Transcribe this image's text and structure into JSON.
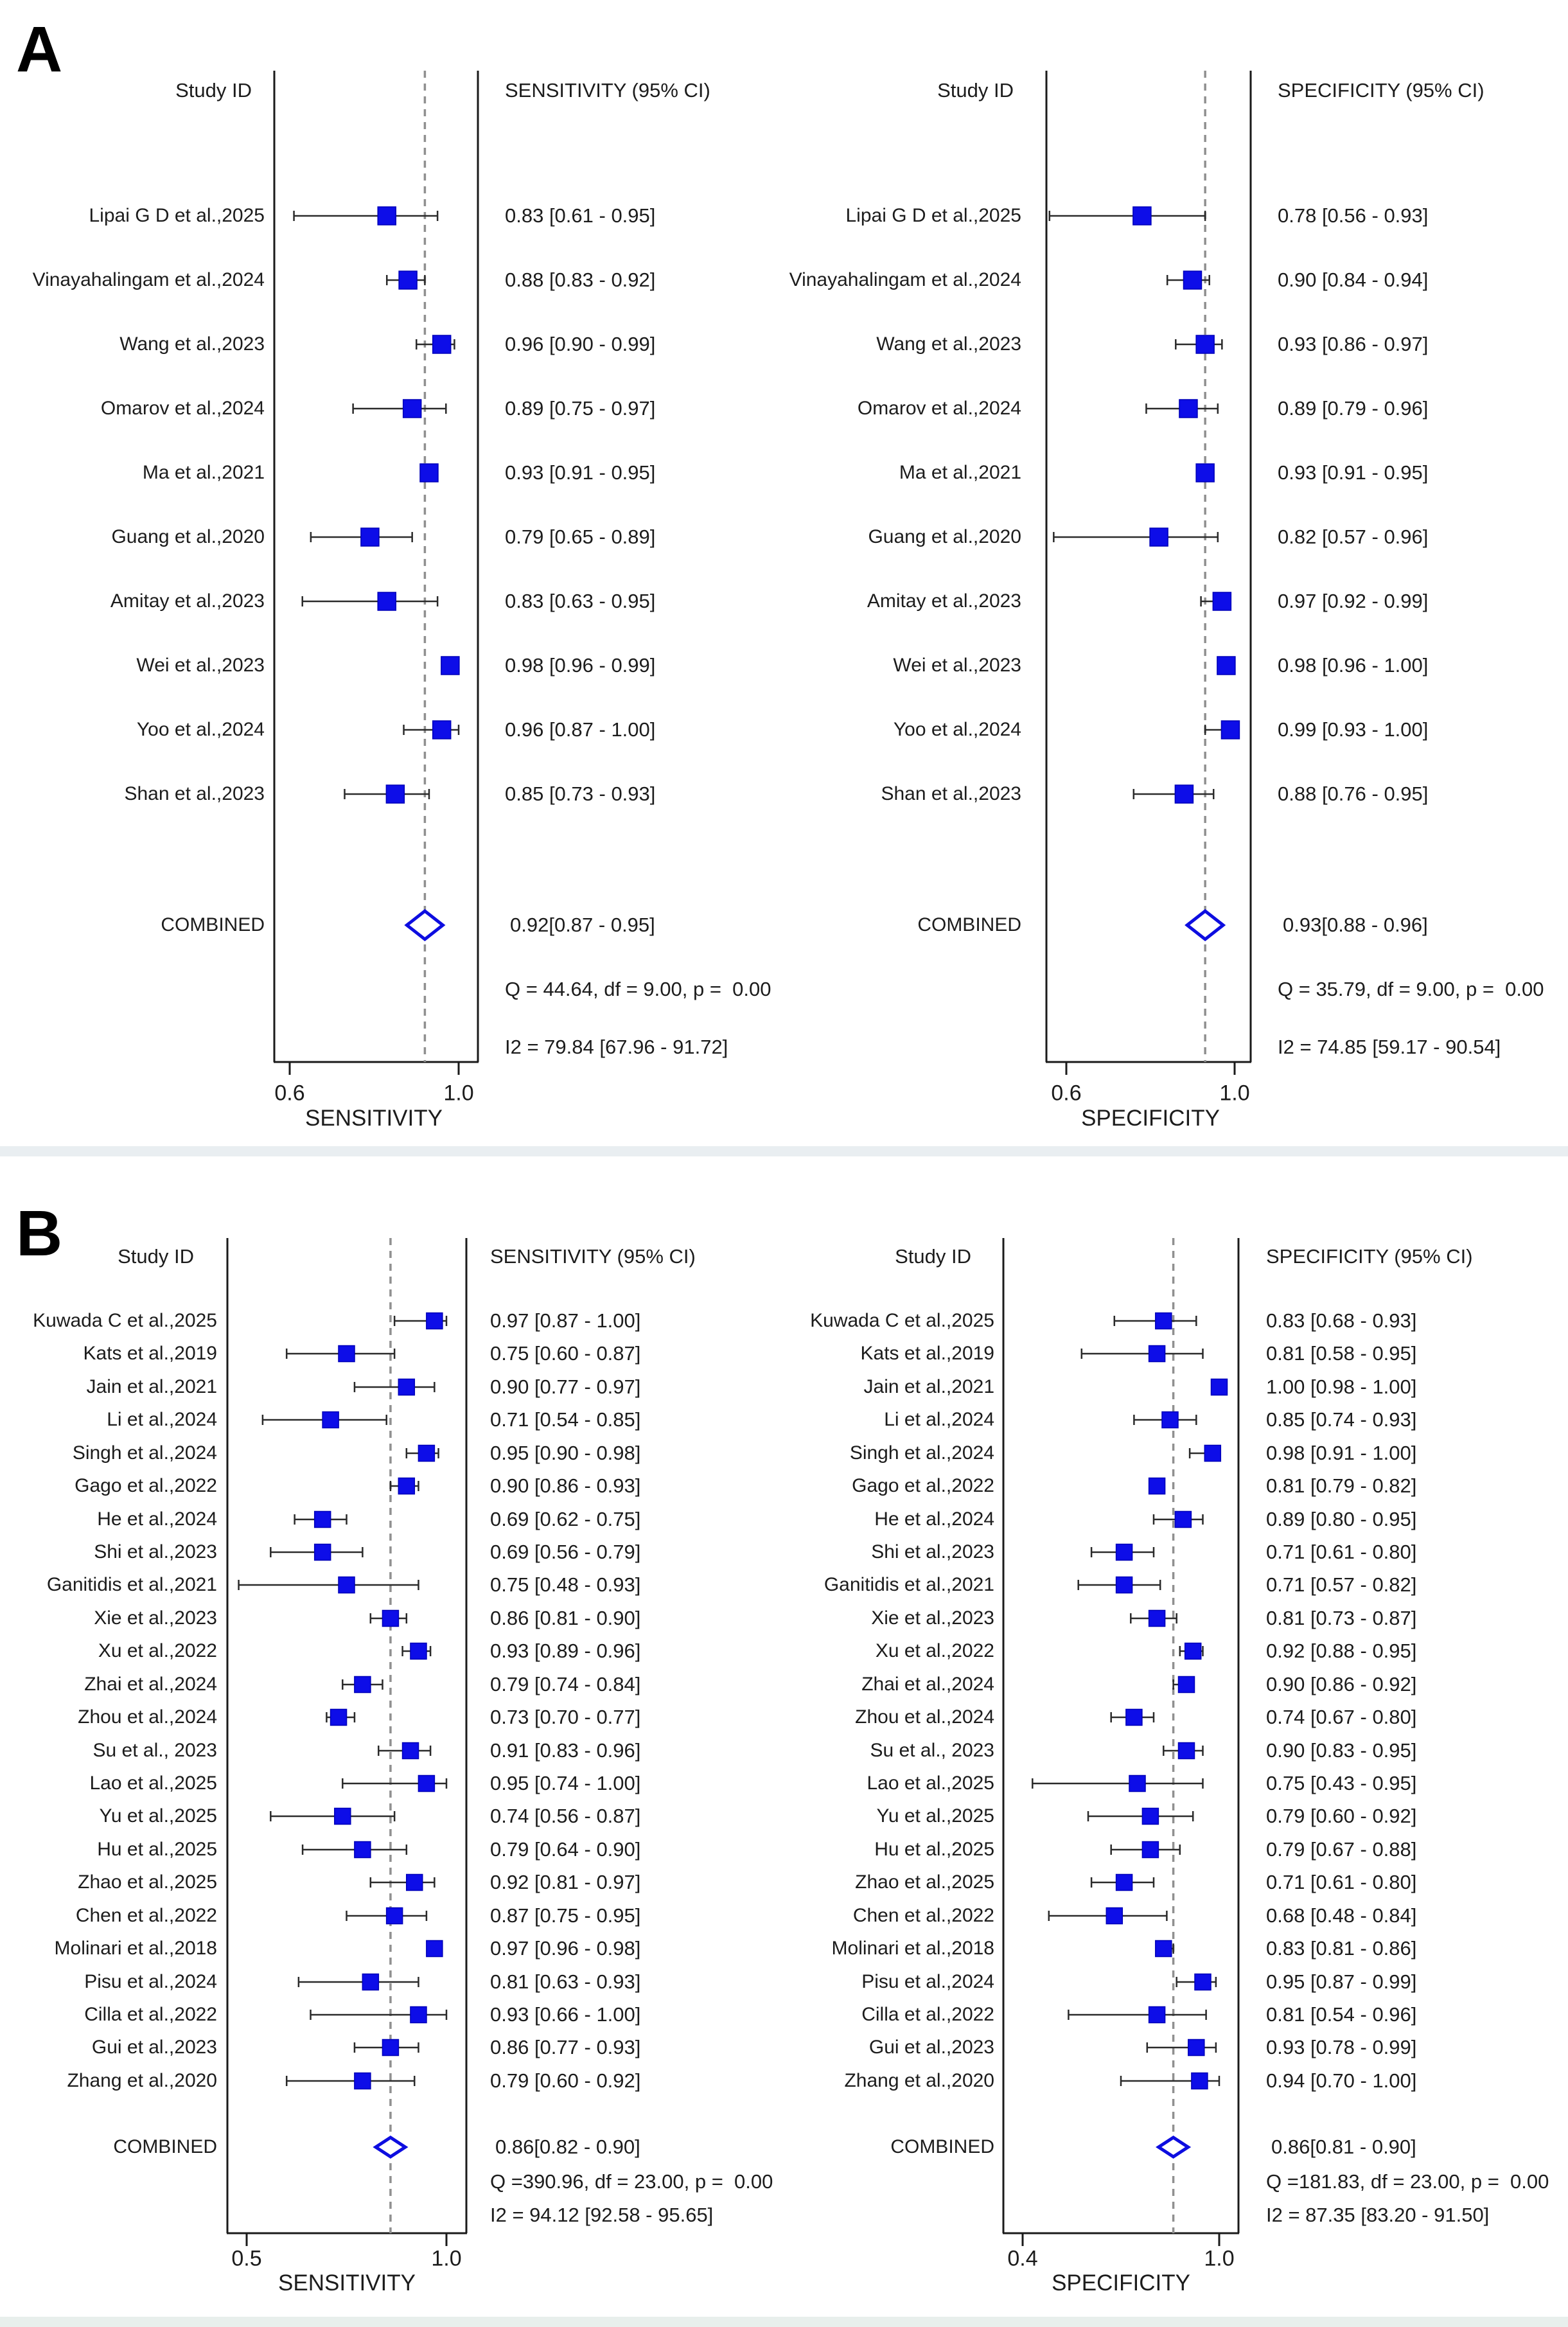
{
  "page": {
    "panel_a_label": "A",
    "panel_b_label": "B",
    "background_color": "#ffffff",
    "separator_band_color": "#e9eef1",
    "bottom_band_color": "#e8efec",
    "marker_color": "#0d0de8",
    "marker_edge_color": "#0000b8",
    "diamond_edge_color": "#0d0de0",
    "line_color": "#1a1a1a",
    "ci_line_color": "#2a2a2a",
    "dashed_line_color": "#909090",
    "text_color": "#1c1c1c"
  },
  "chart_data": [
    {
      "type": "forest",
      "panel": "A",
      "measure": "sensitivity",
      "study_header": "Study ID",
      "value_header": "SENSITIVITY (95% CI)",
      "axis_label": "SENSITIVITY",
      "axis_ticks": [
        "0.6",
        "1.0"
      ],
      "axis_tick_values": [
        0.6,
        1.0
      ],
      "studies": [
        {
          "label": "Lipai G D et al.,2025",
          "est": 0.83,
          "lo": 0.61,
          "hi": 0.95,
          "ci": "0.83 [0.61 - 0.95]"
        },
        {
          "label": "Vinayahalingam et al.,2024",
          "est": 0.88,
          "lo": 0.83,
          "hi": 0.92,
          "ci": "0.88 [0.83 - 0.92]"
        },
        {
          "label": "Wang et al.,2023",
          "est": 0.96,
          "lo": 0.9,
          "hi": 0.99,
          "ci": "0.96 [0.90 - 0.99]"
        },
        {
          "label": "Omarov et al.,2024",
          "est": 0.89,
          "lo": 0.75,
          "hi": 0.97,
          "ci": "0.89 [0.75 - 0.97]"
        },
        {
          "label": "Ma et al.,2021",
          "est": 0.93,
          "lo": 0.91,
          "hi": 0.95,
          "ci": "0.93 [0.91 - 0.95]"
        },
        {
          "label": "Guang et al.,2020",
          "est": 0.79,
          "lo": 0.65,
          "hi": 0.89,
          "ci": "0.79 [0.65 - 0.89]"
        },
        {
          "label": "Amitay et al.,2023",
          "est": 0.83,
          "lo": 0.63,
          "hi": 0.95,
          "ci": "0.83 [0.63 - 0.95]"
        },
        {
          "label": "Wei et al.,2023",
          "est": 0.98,
          "lo": 0.96,
          "hi": 0.99,
          "ci": "0.98 [0.96 - 0.99]"
        },
        {
          "label": "Yoo et al.,2024",
          "est": 0.96,
          "lo": 0.87,
          "hi": 1.0,
          "ci": "0.96 [0.87 - 1.00]"
        },
        {
          "label": "Shan et al.,2023",
          "est": 0.85,
          "lo": 0.73,
          "hi": 0.93,
          "ci": "0.85 [0.73 - 0.93]"
        }
      ],
      "combined": {
        "label": "COMBINED",
        "est": 0.92,
        "lo": 0.87,
        "hi": 0.95,
        "ci": "0.92[0.87 - 0.95]"
      },
      "heterogeneity_q": "Q = 44.64, df = 9.00, p =  0.00",
      "heterogeneity_i2": "I2 = 79.84 [67.96 - 91.72]"
    },
    {
      "type": "forest",
      "panel": "A",
      "measure": "specificity",
      "study_header": "Study ID",
      "value_header": "SPECIFICITY (95% CI)",
      "axis_label": "SPECIFICITY",
      "axis_ticks": [
        "0.6",
        "1.0"
      ],
      "axis_tick_values": [
        0.6,
        1.0
      ],
      "studies": [
        {
          "label": "Lipai G D et al.,2025",
          "est": 0.78,
          "lo": 0.56,
          "hi": 0.93,
          "ci": "0.78 [0.56 - 0.93]"
        },
        {
          "label": "Vinayahalingam et al.,2024",
          "est": 0.9,
          "lo": 0.84,
          "hi": 0.94,
          "ci": "0.90 [0.84 - 0.94]"
        },
        {
          "label": "Wang et al.,2023",
          "est": 0.93,
          "lo": 0.86,
          "hi": 0.97,
          "ci": "0.93 [0.86 - 0.97]"
        },
        {
          "label": "Omarov et al.,2024",
          "est": 0.89,
          "lo": 0.79,
          "hi": 0.96,
          "ci": "0.89 [0.79 - 0.96]"
        },
        {
          "label": "Ma et al.,2021",
          "est": 0.93,
          "lo": 0.91,
          "hi": 0.95,
          "ci": "0.93 [0.91 - 0.95]"
        },
        {
          "label": "Guang et al.,2020",
          "est": 0.82,
          "lo": 0.57,
          "hi": 0.96,
          "ci": "0.82 [0.57 - 0.96]"
        },
        {
          "label": "Amitay et al.,2023",
          "est": 0.97,
          "lo": 0.92,
          "hi": 0.99,
          "ci": "0.97 [0.92 - 0.99]"
        },
        {
          "label": "Wei et al.,2023",
          "est": 0.98,
          "lo": 0.96,
          "hi": 1.0,
          "ci": "0.98 [0.96 - 1.00]"
        },
        {
          "label": "Yoo et al.,2024",
          "est": 0.99,
          "lo": 0.93,
          "hi": 1.0,
          "ci": "0.99 [0.93 - 1.00]"
        },
        {
          "label": "Shan et al.,2023",
          "est": 0.88,
          "lo": 0.76,
          "hi": 0.95,
          "ci": "0.88 [0.76 - 0.95]"
        }
      ],
      "combined": {
        "label": "COMBINED",
        "est": 0.93,
        "lo": 0.88,
        "hi": 0.96,
        "ci": "0.93[0.88 - 0.96]"
      },
      "heterogeneity_q": "Q = 35.79, df = 9.00, p =  0.00",
      "heterogeneity_i2": "I2 = 74.85 [59.17 - 90.54]"
    },
    {
      "type": "forest",
      "panel": "B",
      "measure": "sensitivity",
      "study_header": "Study ID",
      "value_header": "SENSITIVITY (95% CI)",
      "axis_label": "SENSITIVITY",
      "axis_ticks": [
        "0.5",
        "1.0"
      ],
      "axis_tick_values": [
        0.5,
        1.0
      ],
      "studies": [
        {
          "label": "Kuwada C et al.,2025",
          "est": 0.97,
          "lo": 0.87,
          "hi": 1.0,
          "ci": "0.97 [0.87 - 1.00]"
        },
        {
          "label": "Kats et al.,2019",
          "est": 0.75,
          "lo": 0.6,
          "hi": 0.87,
          "ci": "0.75 [0.60 - 0.87]"
        },
        {
          "label": "Jain et al.,2021",
          "est": 0.9,
          "lo": 0.77,
          "hi": 0.97,
          "ci": "0.90 [0.77 - 0.97]"
        },
        {
          "label": "Li et al.,2024",
          "est": 0.71,
          "lo": 0.54,
          "hi": 0.85,
          "ci": "0.71 [0.54 - 0.85]"
        },
        {
          "label": "Singh et al.,2024",
          "est": 0.95,
          "lo": 0.9,
          "hi": 0.98,
          "ci": "0.95 [0.90 - 0.98]"
        },
        {
          "label": "Gago et al.,2022",
          "est": 0.9,
          "lo": 0.86,
          "hi": 0.93,
          "ci": "0.90 [0.86 - 0.93]"
        },
        {
          "label": "He et al.,2024",
          "est": 0.69,
          "lo": 0.62,
          "hi": 0.75,
          "ci": "0.69 [0.62 - 0.75]"
        },
        {
          "label": "Shi et al.,2023",
          "est": 0.69,
          "lo": 0.56,
          "hi": 0.79,
          "ci": "0.69 [0.56 - 0.79]"
        },
        {
          "label": "Ganitidis et al.,2021",
          "est": 0.75,
          "lo": 0.48,
          "hi": 0.93,
          "ci": "0.75 [0.48 - 0.93]"
        },
        {
          "label": "Xie et al.,2023",
          "est": 0.86,
          "lo": 0.81,
          "hi": 0.9,
          "ci": "0.86 [0.81 - 0.90]"
        },
        {
          "label": "Xu et al.,2022",
          "est": 0.93,
          "lo": 0.89,
          "hi": 0.96,
          "ci": "0.93 [0.89 - 0.96]"
        },
        {
          "label": "Zhai et al.,2024",
          "est": 0.79,
          "lo": 0.74,
          "hi": 0.84,
          "ci": "0.79 [0.74 - 0.84]"
        },
        {
          "label": "Zhou et al.,2024",
          "est": 0.73,
          "lo": 0.7,
          "hi": 0.77,
          "ci": "0.73 [0.70 - 0.77]"
        },
        {
          "label": "Su et al., 2023",
          "est": 0.91,
          "lo": 0.83,
          "hi": 0.96,
          "ci": "0.91 [0.83 - 0.96]"
        },
        {
          "label": "Lao et al.,2025",
          "est": 0.95,
          "lo": 0.74,
          "hi": 1.0,
          "ci": "0.95 [0.74 - 1.00]"
        },
        {
          "label": "Yu et al.,2025",
          "est": 0.74,
          "lo": 0.56,
          "hi": 0.87,
          "ci": "0.74 [0.56 - 0.87]"
        },
        {
          "label": "Hu et al.,2025",
          "est": 0.79,
          "lo": 0.64,
          "hi": 0.9,
          "ci": "0.79 [0.64 - 0.90]"
        },
        {
          "label": "Zhao et al.,2025",
          "est": 0.92,
          "lo": 0.81,
          "hi": 0.97,
          "ci": "0.92 [0.81 - 0.97]"
        },
        {
          "label": "Chen et al.,2022",
          "est": 0.87,
          "lo": 0.75,
          "hi": 0.95,
          "ci": "0.87 [0.75 - 0.95]"
        },
        {
          "label": "Molinari et al.,2018",
          "est": 0.97,
          "lo": 0.96,
          "hi": 0.98,
          "ci": "0.97 [0.96 - 0.98]"
        },
        {
          "label": "Pisu et al.,2024",
          "est": 0.81,
          "lo": 0.63,
          "hi": 0.93,
          "ci": "0.81 [0.63 - 0.93]"
        },
        {
          "label": "Cilla et al.,2022",
          "est": 0.93,
          "lo": 0.66,
          "hi": 1.0,
          "ci": "0.93 [0.66 - 1.00]"
        },
        {
          "label": "Gui et al.,2023",
          "est": 0.86,
          "lo": 0.77,
          "hi": 0.93,
          "ci": "0.86 [0.77 - 0.93]"
        },
        {
          "label": "Zhang et al.,2020",
          "est": 0.79,
          "lo": 0.6,
          "hi": 0.92,
          "ci": "0.79 [0.60 - 0.92]"
        }
      ],
      "combined": {
        "label": "COMBINED",
        "est": 0.86,
        "lo": 0.82,
        "hi": 0.9,
        "ci": "0.86[0.82 - 0.90]"
      },
      "heterogeneity_q": "Q =390.96, df = 23.00, p =  0.00",
      "heterogeneity_i2": "I2 = 94.12 [92.58 - 95.65]"
    },
    {
      "type": "forest",
      "panel": "B",
      "measure": "specificity",
      "study_header": "Study ID",
      "value_header": "SPECIFICITY (95% CI)",
      "axis_label": "SPECIFICITY",
      "axis_ticks": [
        "0.4",
        "1.0"
      ],
      "axis_tick_values": [
        0.4,
        1.0
      ],
      "studies": [
        {
          "label": "Kuwada C et al.,2025",
          "est": 0.83,
          "lo": 0.68,
          "hi": 0.93,
          "ci": "0.83 [0.68 - 0.93]"
        },
        {
          "label": "Kats et al.,2019",
          "est": 0.81,
          "lo": 0.58,
          "hi": 0.95,
          "ci": "0.81 [0.58 - 0.95]"
        },
        {
          "label": "Jain et al.,2021",
          "est": 1.0,
          "lo": 0.98,
          "hi": 1.0,
          "ci": "1.00 [0.98 - 1.00]"
        },
        {
          "label": "Li et al.,2024",
          "est": 0.85,
          "lo": 0.74,
          "hi": 0.93,
          "ci": "0.85 [0.74 - 0.93]"
        },
        {
          "label": "Singh et al.,2024",
          "est": 0.98,
          "lo": 0.91,
          "hi": 1.0,
          "ci": "0.98 [0.91 - 1.00]"
        },
        {
          "label": "Gago et al.,2022",
          "est": 0.81,
          "lo": 0.79,
          "hi": 0.82,
          "ci": "0.81 [0.79 - 0.82]"
        },
        {
          "label": "He et al.,2024",
          "est": 0.89,
          "lo": 0.8,
          "hi": 0.95,
          "ci": "0.89 [0.80 - 0.95]"
        },
        {
          "label": "Shi et al.,2023",
          "est": 0.71,
          "lo": 0.61,
          "hi": 0.8,
          "ci": "0.71 [0.61 - 0.80]"
        },
        {
          "label": "Ganitidis et al.,2021",
          "est": 0.71,
          "lo": 0.57,
          "hi": 0.82,
          "ci": "0.71 [0.57 - 0.82]"
        },
        {
          "label": "Xie et al.,2023",
          "est": 0.81,
          "lo": 0.73,
          "hi": 0.87,
          "ci": "0.81 [0.73 - 0.87]"
        },
        {
          "label": "Xu et al.,2022",
          "est": 0.92,
          "lo": 0.88,
          "hi": 0.95,
          "ci": "0.92 [0.88 - 0.95]"
        },
        {
          "label": "Zhai et al.,2024",
          "est": 0.9,
          "lo": 0.86,
          "hi": 0.92,
          "ci": "0.90 [0.86 - 0.92]"
        },
        {
          "label": "Zhou et al.,2024",
          "est": 0.74,
          "lo": 0.67,
          "hi": 0.8,
          "ci": "0.74 [0.67 - 0.80]"
        },
        {
          "label": "Su et al., 2023",
          "est": 0.9,
          "lo": 0.83,
          "hi": 0.95,
          "ci": "0.90 [0.83 - 0.95]"
        },
        {
          "label": "Lao et al.,2025",
          "est": 0.75,
          "lo": 0.43,
          "hi": 0.95,
          "ci": "0.75 [0.43 - 0.95]"
        },
        {
          "label": "Yu et al.,2025",
          "est": 0.79,
          "lo": 0.6,
          "hi": 0.92,
          "ci": "0.79 [0.60 - 0.92]"
        },
        {
          "label": "Hu et al.,2025",
          "est": 0.79,
          "lo": 0.67,
          "hi": 0.88,
          "ci": "0.79 [0.67 - 0.88]"
        },
        {
          "label": "Zhao et al.,2025",
          "est": 0.71,
          "lo": 0.61,
          "hi": 0.8,
          "ci": "0.71 [0.61 - 0.80]"
        },
        {
          "label": "Chen et al.,2022",
          "est": 0.68,
          "lo": 0.48,
          "hi": 0.84,
          "ci": "0.68 [0.48 - 0.84]"
        },
        {
          "label": "Molinari et al.,2018",
          "est": 0.83,
          "lo": 0.81,
          "hi": 0.86,
          "ci": "0.83 [0.81 - 0.86]"
        },
        {
          "label": "Pisu et al.,2024",
          "est": 0.95,
          "lo": 0.87,
          "hi": 0.99,
          "ci": "0.95 [0.87 - 0.99]"
        },
        {
          "label": "Cilla et al.,2022",
          "est": 0.81,
          "lo": 0.54,
          "hi": 0.96,
          "ci": "0.81 [0.54 - 0.96]"
        },
        {
          "label": "Gui et al.,2023",
          "est": 0.93,
          "lo": 0.78,
          "hi": 0.99,
          "ci": "0.93 [0.78 - 0.99]"
        },
        {
          "label": "Zhang et al.,2020",
          "est": 0.94,
          "lo": 0.7,
          "hi": 1.0,
          "ci": "0.94 [0.70 - 1.00]"
        }
      ],
      "combined": {
        "label": "COMBINED",
        "est": 0.86,
        "lo": 0.81,
        "hi": 0.9,
        "ci": "0.86[0.81 - 0.90]"
      },
      "heterogeneity_q": "Q =181.83, df = 23.00, p =  0.00",
      "heterogeneity_i2": "I2 = 87.35 [83.20 - 91.50]"
    }
  ]
}
